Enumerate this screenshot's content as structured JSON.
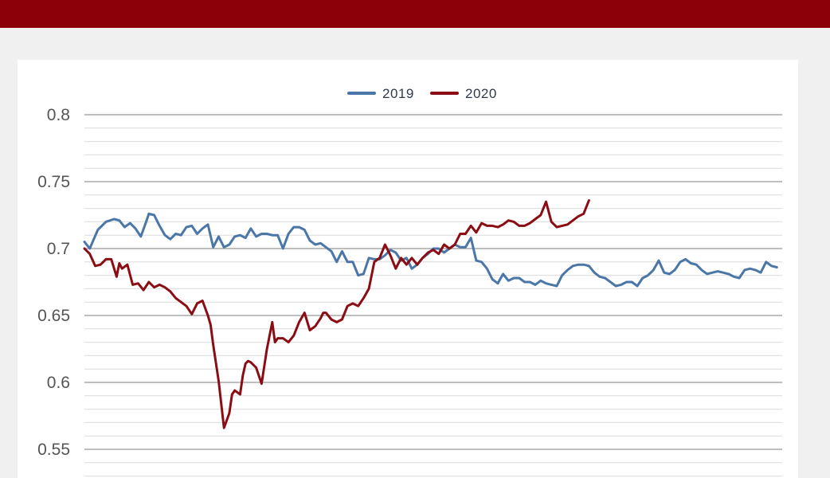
{
  "colors": {
    "top_bar": "#8b0009",
    "series_2019": "#4a76a8",
    "series_2020": "#8b0d14",
    "grid_major": "#a8a8a8",
    "grid_minor": "#dcdcdc"
  },
  "chart_data": {
    "type": "line",
    "legend": {
      "placement": "top-center"
    },
    "ylim": [
      0.53,
      0.8
    ],
    "y_ticks": [
      "0.8",
      "0.75",
      "0.7",
      "0.65",
      "0.6",
      "0.55"
    ],
    "y_tick_values": [
      0.8,
      0.75,
      0.7,
      0.65,
      0.6,
      0.55
    ],
    "y_minor_step": 0.01,
    "grid": true,
    "x_range": [
      0,
      260
    ],
    "series": [
      {
        "name": "2019",
        "x": [
          0,
          2,
          5,
          8,
          11,
          13,
          15,
          17,
          19,
          21,
          23,
          24,
          26,
          28,
          30,
          32,
          34,
          36,
          38,
          40,
          42,
          44,
          46,
          48,
          50,
          52,
          54,
          56,
          58,
          60,
          62,
          64,
          66,
          68,
          70,
          72,
          74,
          76,
          78,
          80,
          82,
          84,
          86,
          88,
          90,
          92,
          94,
          96,
          98,
          100,
          102,
          104,
          106,
          108,
          110,
          112,
          114,
          116,
          118,
          120,
          122,
          124,
          126,
          128,
          130,
          132,
          134,
          136,
          138,
          140,
          142,
          144,
          146,
          148,
          150,
          152,
          154,
          156,
          158,
          160,
          162,
          164,
          166,
          168,
          170,
          172,
          174,
          176,
          178,
          180,
          182,
          184,
          186,
          188,
          190,
          192,
          194,
          196,
          198,
          200,
          202,
          204,
          206,
          208,
          210,
          212,
          214,
          216,
          218,
          220,
          222,
          224,
          226,
          228,
          230,
          232,
          234,
          236,
          238,
          240,
          242,
          244,
          246,
          248,
          250,
          252,
          254,
          256,
          258
        ],
        "values": [
          0.705,
          0.7,
          0.714,
          0.72,
          0.722,
          0.721,
          0.716,
          0.719,
          0.715,
          0.709,
          0.72,
          0.726,
          0.725,
          0.717,
          0.71,
          0.707,
          0.711,
          0.71,
          0.716,
          0.717,
          0.711,
          0.715,
          0.718,
          0.701,
          0.709,
          0.701,
          0.703,
          0.709,
          0.71,
          0.708,
          0.715,
          0.709,
          0.711,
          0.711,
          0.71,
          0.71,
          0.7,
          0.711,
          0.716,
          0.716,
          0.714,
          0.706,
          0.703,
          0.704,
          0.701,
          0.698,
          0.69,
          0.698,
          0.69,
          0.69,
          0.68,
          0.681,
          0.693,
          0.692,
          0.692,
          0.695,
          0.699,
          0.697,
          0.691,
          0.693,
          0.685,
          0.688,
          0.693,
          0.696,
          0.7,
          0.7,
          0.697,
          0.7,
          0.703,
          0.701,
          0.701,
          0.708,
          0.691,
          0.69,
          0.685,
          0.677,
          0.674,
          0.681,
          0.676,
          0.678,
          0.678,
          0.675,
          0.675,
          0.673,
          0.676,
          0.674,
          0.673,
          0.672,
          0.68,
          0.684,
          0.687,
          0.688,
          0.688,
          0.687,
          0.682,
          0.679,
          0.678,
          0.675,
          0.672,
          0.673,
          0.675,
          0.675,
          0.672,
          0.678,
          0.68,
          0.684,
          0.691,
          0.682,
          0.681,
          0.684,
          0.69,
          0.692,
          0.689,
          0.688,
          0.684,
          0.681,
          0.682,
          0.683,
          0.682,
          0.681,
          0.679,
          0.678,
          0.684,
          0.685,
          0.684,
          0.682,
          0.69,
          0.687,
          0.686
        ]
      },
      {
        "name": "2020",
        "x": [
          0,
          2,
          4,
          6,
          8,
          10,
          12,
          13,
          14,
          16,
          18,
          20,
          22,
          24,
          26,
          28,
          30,
          32,
          34,
          36,
          38,
          40,
          42,
          44,
          46,
          47,
          48,
          50,
          52,
          54,
          55,
          56,
          58,
          59,
          60,
          61,
          62,
          64,
          65,
          66,
          68,
          70,
          71,
          72,
          74,
          76,
          78,
          80,
          82,
          84,
          86,
          88,
          89,
          90,
          92,
          94,
          96,
          98,
          100,
          102,
          104,
          106,
          108,
          110,
          112,
          114,
          116,
          118,
          120,
          122,
          124,
          126,
          128,
          130,
          132,
          134,
          136,
          138,
          140,
          142,
          144,
          146,
          148,
          150,
          152,
          154,
          156,
          158,
          160,
          162,
          164,
          166,
          168,
          170,
          172,
          174,
          176,
          178,
          180,
          182,
          184,
          186,
          188
        ],
        "values": [
          0.7,
          0.696,
          0.687,
          0.688,
          0.692,
          0.692,
          0.679,
          0.689,
          0.685,
          0.688,
          0.673,
          0.674,
          0.669,
          0.675,
          0.671,
          0.673,
          0.671,
          0.668,
          0.663,
          0.66,
          0.657,
          0.651,
          0.659,
          0.661,
          0.65,
          0.643,
          0.628,
          0.601,
          0.566,
          0.577,
          0.591,
          0.594,
          0.591,
          0.605,
          0.614,
          0.616,
          0.615,
          0.611,
          0.605,
          0.599,
          0.625,
          0.645,
          0.63,
          0.633,
          0.633,
          0.63,
          0.635,
          0.645,
          0.652,
          0.639,
          0.642,
          0.648,
          0.652,
          0.652,
          0.647,
          0.645,
          0.647,
          0.657,
          0.659,
          0.657,
          0.663,
          0.67,
          0.69,
          0.693,
          0.703,
          0.695,
          0.685,
          0.693,
          0.688,
          0.693,
          0.688,
          0.693,
          0.697,
          0.699,
          0.696,
          0.703,
          0.7,
          0.703,
          0.711,
          0.711,
          0.717,
          0.712,
          0.719,
          0.717,
          0.717,
          0.716,
          0.718,
          0.721,
          0.72,
          0.717,
          0.717,
          0.719,
          0.722,
          0.725,
          0.735,
          0.72,
          0.716,
          0.717,
          0.718,
          0.721,
          0.724,
          0.726,
          0.736
        ]
      }
    ]
  }
}
